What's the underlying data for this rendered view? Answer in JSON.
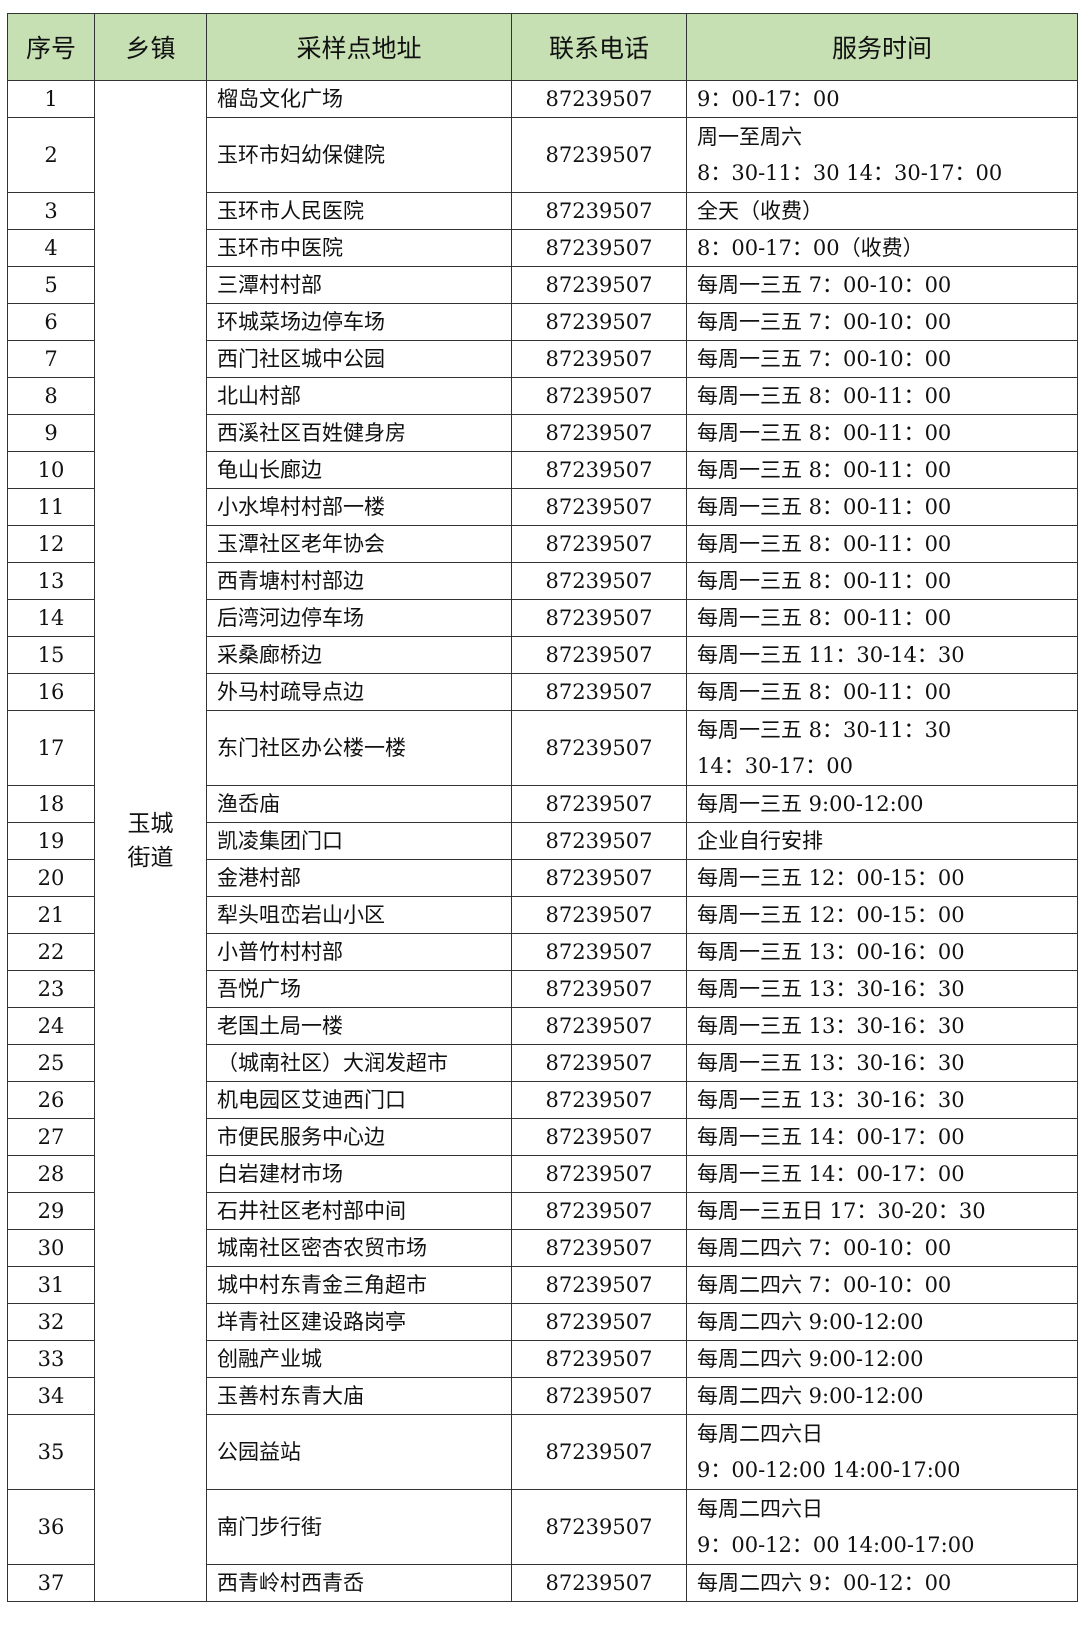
{
  "header": {
    "index": "序号",
    "town": "乡镇",
    "address": "采样点地址",
    "phone": "联系电话",
    "time": "服务时间"
  },
  "town_lines": [
    "玉城",
    "街道"
  ],
  "header_bg": "#c6e0b4",
  "rows": [
    {
      "n": "1",
      "addr": "榴岛文化广场",
      "phone": "87239507",
      "time": [
        "9：00-17：00"
      ]
    },
    {
      "n": "2",
      "addr": "玉环市妇幼保健院",
      "phone": "87239507",
      "time": [
        "周一至周六",
        "8：30-11：30 14：30-17：00"
      ]
    },
    {
      "n": "3",
      "addr": "玉环市人民医院",
      "phone": "87239507",
      "time": [
        "全天（收费）"
      ]
    },
    {
      "n": "4",
      "addr": "玉环市中医院",
      "phone": "87239507",
      "time": [
        "8：00-17：00（收费）"
      ]
    },
    {
      "n": "5",
      "addr": "三潭村村部",
      "phone": "87239507",
      "time": [
        "每周一三五 7：00-10：00"
      ]
    },
    {
      "n": "6",
      "addr": "环城菜场边停车场",
      "phone": "87239507",
      "time": [
        "每周一三五 7：00-10：00"
      ]
    },
    {
      "n": "7",
      "addr": "西门社区城中公园",
      "phone": "87239507",
      "time": [
        "每周一三五 7：00-10：00"
      ]
    },
    {
      "n": "8",
      "addr": "北山村部",
      "phone": "87239507",
      "time": [
        "每周一三五 8：00-11：00"
      ]
    },
    {
      "n": "9",
      "addr": "西溪社区百姓健身房",
      "phone": "87239507",
      "time": [
        "每周一三五 8：00-11：00"
      ]
    },
    {
      "n": "10",
      "addr": "龟山长廊边",
      "phone": "87239507",
      "time": [
        "每周一三五 8：00-11：00"
      ]
    },
    {
      "n": "11",
      "addr": "小水埠村村部一楼",
      "phone": "87239507",
      "time": [
        "每周一三五 8：00-11：00"
      ]
    },
    {
      "n": "12",
      "addr": "玉潭社区老年协会",
      "phone": "87239507",
      "time": [
        "每周一三五 8：00-11：00"
      ]
    },
    {
      "n": "13",
      "addr": "西青塘村村部边",
      "phone": "87239507",
      "time": [
        "每周一三五 8：00-11：00"
      ]
    },
    {
      "n": "14",
      "addr": "后湾河边停车场",
      "phone": "87239507",
      "time": [
        "每周一三五 8：00-11：00"
      ]
    },
    {
      "n": "15",
      "addr": "采桑廊桥边",
      "phone": "87239507",
      "time": [
        "每周一三五 11：30-14：30"
      ]
    },
    {
      "n": "16",
      "addr": "外马村疏导点边",
      "phone": "87239507",
      "time": [
        "每周一三五 8：00-11：00"
      ]
    },
    {
      "n": "17",
      "addr": "东门社区办公楼一楼",
      "phone": "87239507",
      "time": [
        "每周一三五 8：30-11：30",
        "14：30-17：00"
      ]
    },
    {
      "n": "18",
      "addr": "渔岙庙",
      "phone": "87239507",
      "time": [
        "每周一三五 9:00-12:00"
      ]
    },
    {
      "n": "19",
      "addr": "凯凌集团门口",
      "phone": "87239507",
      "time": [
        "企业自行安排"
      ]
    },
    {
      "n": "20",
      "addr": "金港村部",
      "phone": "87239507",
      "time": [
        "每周一三五 12：00-15：00"
      ]
    },
    {
      "n": "21",
      "addr": "犁头咀峦岩山小区",
      "phone": "87239507",
      "time": [
        "每周一三五 12：00-15：00"
      ]
    },
    {
      "n": "22",
      "addr": "小普竹村村部",
      "phone": "87239507",
      "time": [
        "每周一三五 13：00-16：00"
      ]
    },
    {
      "n": "23",
      "addr": "吾悦广场",
      "phone": "87239507",
      "time": [
        "每周一三五 13：30-16：30"
      ]
    },
    {
      "n": "24",
      "addr": "老国土局一楼",
      "phone": "87239507",
      "time": [
        "每周一三五 13：30-16：30"
      ]
    },
    {
      "n": "25",
      "addr": "（城南社区）大润发超市",
      "phone": "87239507",
      "time": [
        "每周一三五 13：30-16：30"
      ]
    },
    {
      "n": "26",
      "addr": "机电园区艾迪西门口",
      "phone": "87239507",
      "time": [
        "每周一三五 13：30-16：30"
      ]
    },
    {
      "n": "27",
      "addr": "市便民服务中心边",
      "phone": "87239507",
      "time": [
        "每周一三五 14：00-17：00"
      ]
    },
    {
      "n": "28",
      "addr": "白岩建材市场",
      "phone": "87239507",
      "time": [
        "每周一三五 14：00-17：00"
      ]
    },
    {
      "n": "29",
      "addr": "石井社区老村部中间",
      "phone": "87239507",
      "time": [
        "每周一三五日 17：30-20：30"
      ]
    },
    {
      "n": "30",
      "addr": "城南社区密杏农贸市场",
      "phone": "87239507",
      "time": [
        "每周二四六 7：00-10：00"
      ]
    },
    {
      "n": "31",
      "addr": "城中村东青金三角超市",
      "phone": "87239507",
      "time": [
        "每周二四六 7：00-10：00"
      ]
    },
    {
      "n": "32",
      "addr": "垟青社区建设路岗亭",
      "phone": "87239507",
      "time": [
        "每周二四六 9:00-12:00"
      ]
    },
    {
      "n": "33",
      "addr": "创融产业城",
      "phone": "87239507",
      "time": [
        "每周二四六 9:00-12:00"
      ]
    },
    {
      "n": "34",
      "addr": "玉善村东青大庙",
      "phone": "87239507",
      "time": [
        "每周二四六 9:00-12:00"
      ]
    },
    {
      "n": "35",
      "addr": "公园益站",
      "phone": "87239507",
      "time": [
        "每周二四六日",
        "9：00-12:00   14:00-17:00"
      ]
    },
    {
      "n": "36",
      "addr": "南门步行街",
      "phone": "87239507",
      "time": [
        "每周二四六日",
        "9：00-12：00   14:00-17:00"
      ]
    },
    {
      "n": "37",
      "addr": "西青岭村西青岙",
      "phone": "87239507",
      "time": [
        "每周二四六 9：00-12：00"
      ]
    }
  ]
}
